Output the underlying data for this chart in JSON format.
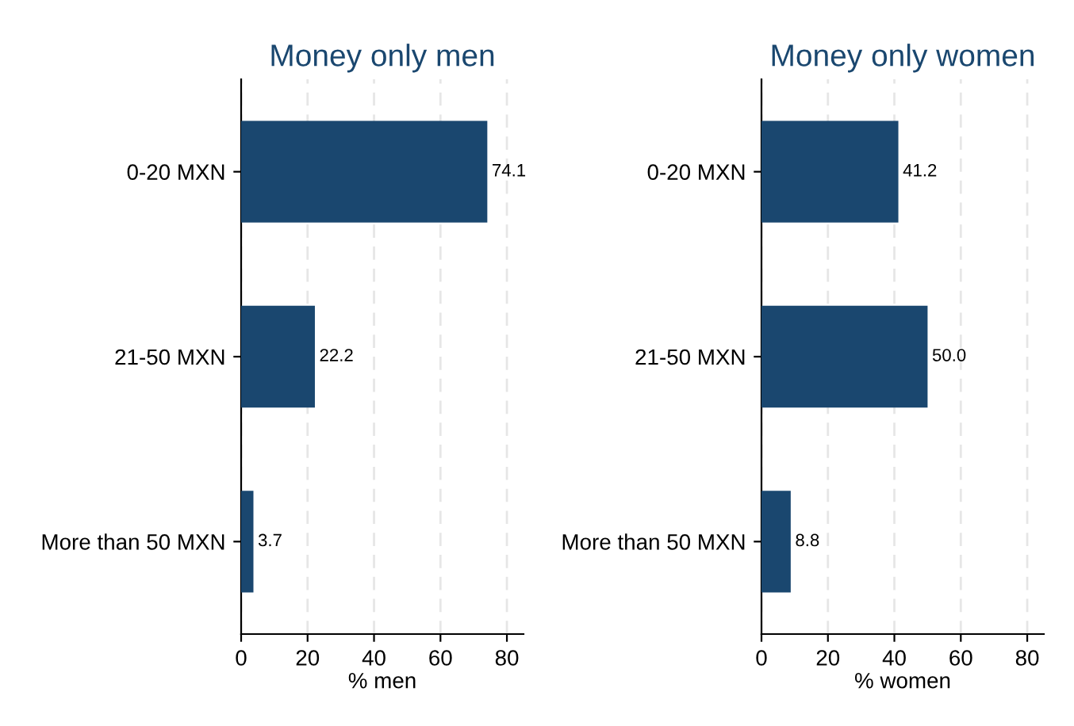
{
  "chart_data": [
    {
      "type": "bar",
      "orientation": "horizontal",
      "title": "Money only men",
      "xlabel": "% men",
      "categories": [
        "0-20 MXN",
        "21-50 MXN",
        "More than 50 MXN"
      ],
      "values": [
        74.1,
        22.2,
        3.7
      ],
      "color": "#1a476f",
      "value_labels": [
        "74.1",
        "22.2",
        "3.7"
      ],
      "xlim": [
        0,
        85
      ],
      "xticks": [
        0,
        20,
        40,
        60,
        80
      ],
      "grid": "x",
      "legend": false
    },
    {
      "type": "bar",
      "orientation": "horizontal",
      "title": "Money only women",
      "xlabel": "% women",
      "categories": [
        "0-20 MXN",
        "21-50 MXN",
        "More than 50 MXN"
      ],
      "values": [
        41.2,
        50.0,
        8.8
      ],
      "color": "#1a476f",
      "value_labels": [
        "41.2",
        "50.0",
        "8.8"
      ],
      "xlim": [
        0,
        85
      ],
      "xticks": [
        0,
        20,
        40,
        60,
        80
      ],
      "grid": "x",
      "legend": false
    }
  ]
}
